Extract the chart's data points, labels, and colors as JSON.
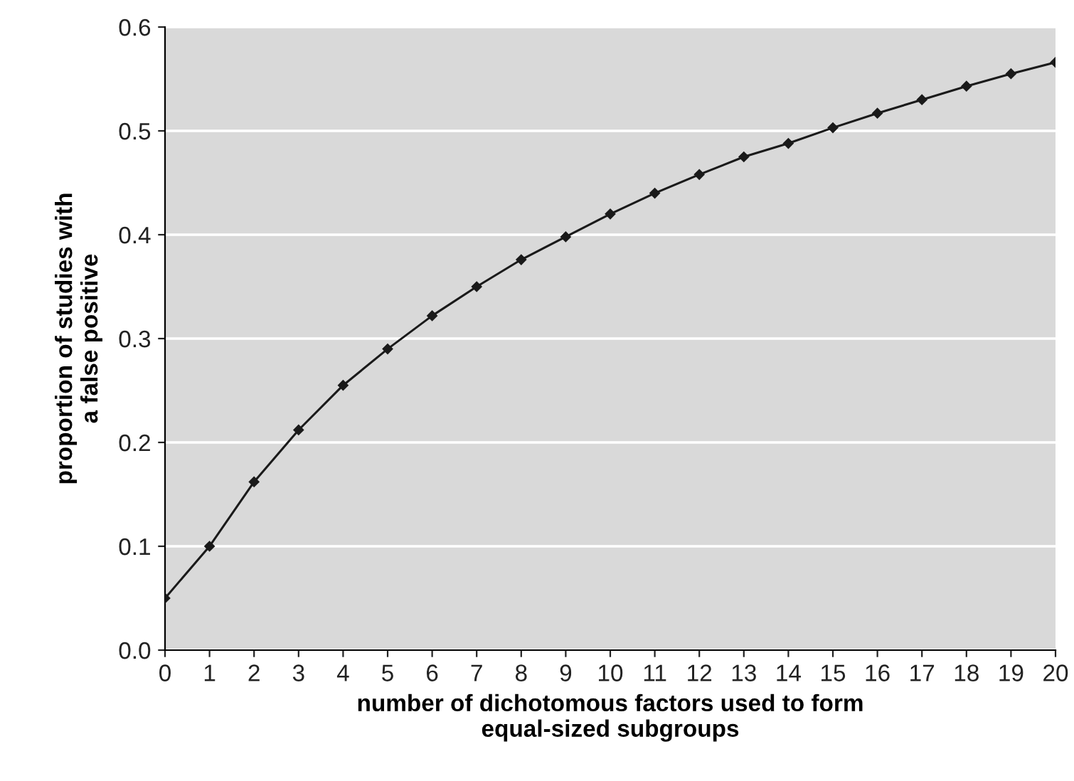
{
  "chart_data": {
    "type": "line",
    "xlabel": "number of dichotomous factors used to form\nequal-sized subgroups",
    "ylabel": "proportion of studies with\na false positive",
    "x": [
      0,
      1,
      2,
      3,
      4,
      5,
      6,
      7,
      8,
      9,
      10,
      11,
      12,
      13,
      14,
      15,
      16,
      17,
      18,
      19,
      20
    ],
    "series": [
      {
        "color": "#1a1a1a",
        "values": [
          0.05,
          0.1,
          0.162,
          0.212,
          0.255,
          0.29,
          0.322,
          0.35,
          0.376,
          0.398,
          0.42,
          0.44,
          0.458,
          0.475,
          0.488,
          0.503,
          0.517,
          0.53,
          0.543,
          0.555,
          0.566
        ]
      }
    ],
    "xlim": [
      0,
      20
    ],
    "xticks": [
      0,
      1,
      2,
      3,
      4,
      5,
      6,
      7,
      8,
      9,
      10,
      11,
      12,
      13,
      14,
      15,
      16,
      17,
      18,
      19,
      20
    ],
    "ylim": [
      0,
      0.6
    ],
    "yticks": [
      {
        "value": 0,
        "label": "0.0"
      },
      0.1,
      0.2,
      0.3,
      0.4,
      0.5,
      0.6
    ],
    "grid": "y",
    "marker": "diamond",
    "line_style": "solid"
  }
}
